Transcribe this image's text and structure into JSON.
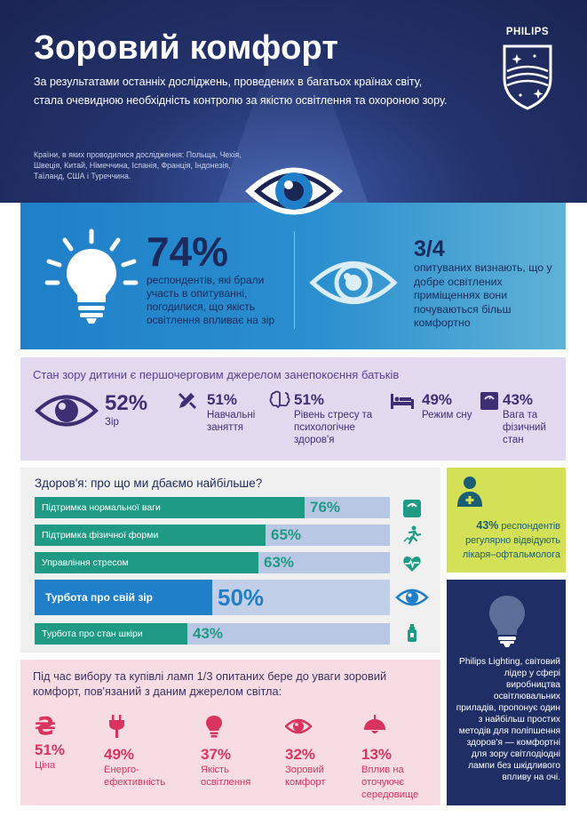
{
  "header": {
    "title": "Зоровий комфорт",
    "intro": "За результатами останніх досліджень, проведених в багатьох країнах світу, стала очевидною необхідність контролю за якістю освітлення та охороною зору.",
    "countries_label": "Країни, в яких проводилися дослідження: Польща, Чехія, Швеція, Китай, Німеччина, Іспанія, Франція, Індонезія, Таїланд, США і Туреччина.",
    "logo_text": "PHILIPS"
  },
  "stats": {
    "a_value": "74%",
    "a_text": "респондентів, які брали участь в опитуванні, погодилися, що якість освітлення впливає на зір",
    "b_value": "3/4",
    "b_text": "опитуваних визнають, що у добре освітлених приміщеннях вони почуваються більш комфортно"
  },
  "concerns": {
    "title": "Стан зору дитини є першочерговим джерелом занепокоєння батьків",
    "items": [
      {
        "pct": "52%",
        "label": "Зір"
      },
      {
        "pct": "51%",
        "label": "Навчальні заняття"
      },
      {
        "pct": "51%",
        "label": "Рівень стресу та психологічне здоров'я"
      },
      {
        "pct": "49%",
        "label": "Режим сну"
      },
      {
        "pct": "43%",
        "label": "Вага та фізичний стан"
      }
    ]
  },
  "health": {
    "title": "Здоров'я: про що ми дбаємо найбільше?",
    "rows": [
      {
        "label": "Підтримка нормальної ваги",
        "pct": "76%",
        "value": 76
      },
      {
        "label": "Підтримка фізичної форми",
        "pct": "65%",
        "value": 65
      },
      {
        "label": "Управління стресом",
        "pct": "63%",
        "value": 63
      },
      {
        "label": "Турбота про свій зір",
        "pct": "50%",
        "value": 50
      },
      {
        "label": "Турбота про стан шкіри",
        "pct": "43%",
        "value": 43
      }
    ]
  },
  "ophthalmologist": {
    "pct": "43%",
    "text": "респондентів регулярно відвідують лікаря–офтальмолога"
  },
  "philips": {
    "text": "Philips Lighting, світовий лідер у сфері виробництва освітлювальних приладів, пропонує один з найбільш простих методів для поліпшення здоров'я — комфортні для зору світлодіодні лампи без шкідливого впливу на очі."
  },
  "purchase": {
    "title": "Під час вибору та купівлі ламп 1/3 опитаних бере до уваги зоровий комфорт, пов'язаний з даним джерелом світла:",
    "currency_glyph": "₴",
    "items": [
      {
        "pct": "51%",
        "label": "Ціна",
        "icon": "hryvnia-icon"
      },
      {
        "pct": "49%",
        "label": "Енерго-ефективність",
        "icon": "plug-icon"
      },
      {
        "pct": "37%",
        "label": "Якість освітлення",
        "icon": "bulb-icon"
      },
      {
        "pct": "32%",
        "label": "Зоровий комфорт",
        "icon": "eye-icon"
      },
      {
        "pct": "13%",
        "label": "Вплив на оточуючє середовище",
        "icon": "lamp-icon"
      }
    ]
  },
  "colors": {
    "navy": "#1b2553",
    "blue": "#1f7fc8",
    "teal": "#1f9a85",
    "purple": "#e3d9ef",
    "pink": "#d8345f",
    "lime": "#d4e157"
  }
}
